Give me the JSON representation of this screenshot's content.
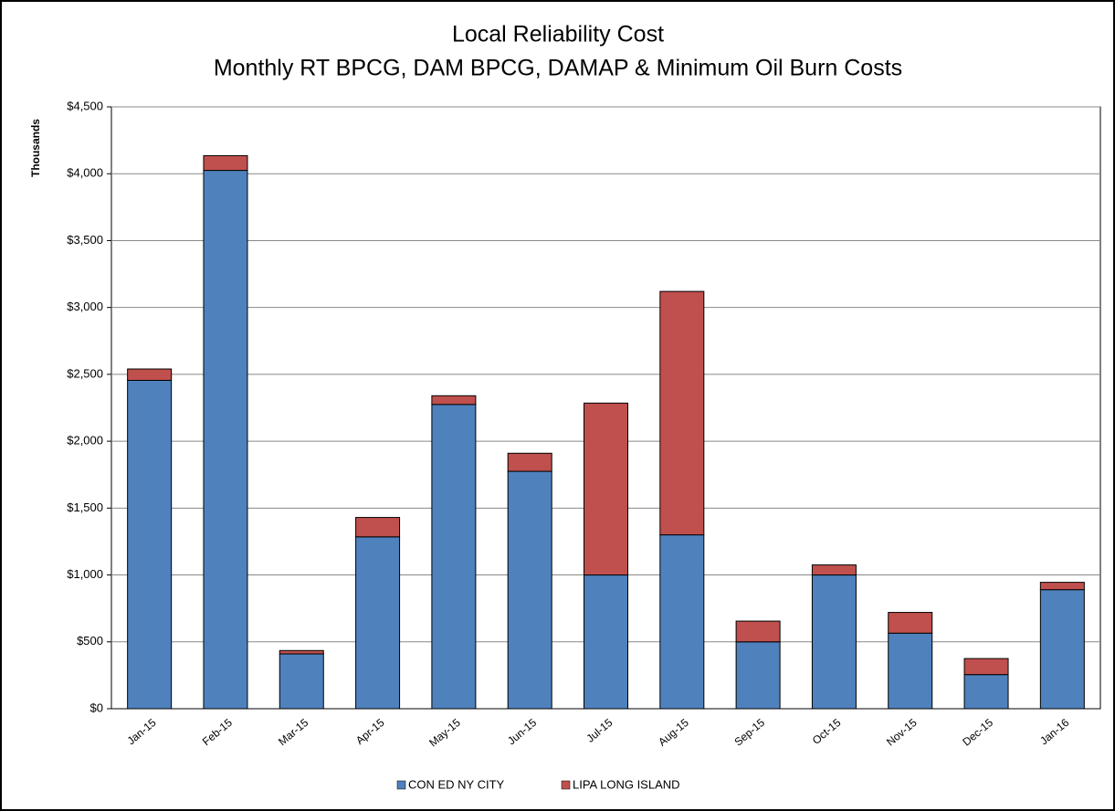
{
  "chart_data": {
    "type": "stacked_bar",
    "title": "Local Reliability Cost",
    "subtitle": "Monthly RT BPCG, DAM BPCG, DAMAP & Minimum Oil Burn Costs",
    "y_label": "Thousands",
    "categories": [
      "Jan-15",
      "Feb-15",
      "Mar-15",
      "Apr-15",
      "May-15",
      "Jun-15",
      "Jul-15",
      "Aug-15",
      "Sep-15",
      "Oct-15",
      "Nov-15",
      "Dec-15",
      "Jan-16"
    ],
    "series": [
      {
        "name": "CON ED NY CITY",
        "color": "#4f81bd",
        "values": [
          2455,
          4025,
          410,
          1285,
          2275,
          1775,
          1000,
          1300,
          500,
          1000,
          565,
          255,
          890
        ]
      },
      {
        "name": "LIPA LONG ISLAND",
        "color": "#c0504d",
        "values": [
          85,
          110,
          25,
          145,
          65,
          135,
          1285,
          1820,
          155,
          75,
          155,
          120,
          55
        ]
      }
    ],
    "ylim": [
      0,
      4500
    ],
    "yticks": [
      {
        "value": 0,
        "label": "$0"
      },
      {
        "value": 500,
        "label": "$500"
      },
      {
        "value": 1000,
        "label": "$1,000"
      },
      {
        "value": 1500,
        "label": "$1,500"
      },
      {
        "value": 2000,
        "label": "$2,000"
      },
      {
        "value": 2500,
        "label": "$2,500"
      },
      {
        "value": 3000,
        "label": "$3,000"
      },
      {
        "value": 3500,
        "label": "$3,500"
      },
      {
        "value": 4000,
        "label": "$4,000"
      },
      {
        "value": 4500,
        "label": "$4,500"
      }
    ],
    "grid": true,
    "legend": "bottom"
  }
}
